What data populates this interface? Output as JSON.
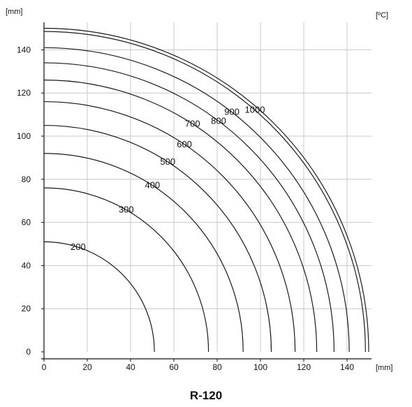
{
  "chart_data": {
    "type": "line",
    "title": "R-120",
    "xlabel": "[mm]",
    "ylabel": "[mm]",
    "unit_label": "[ºC]",
    "xlim": [
      0,
      150
    ],
    "ylim": [
      0,
      150
    ],
    "xticks": [
      0,
      20,
      40,
      60,
      80,
      100,
      120,
      140
    ],
    "yticks": [
      0,
      20,
      40,
      60,
      80,
      100,
      120,
      140
    ],
    "grid": true,
    "curve_shape": "quarter-circle isotherms centred at origin",
    "series": [
      {
        "name": "200",
        "radius": 51
      },
      {
        "name": "300",
        "radius": 76
      },
      {
        "name": "400",
        "radius": 92
      },
      {
        "name": "500",
        "radius": 105
      },
      {
        "name": "600",
        "radius": 116
      },
      {
        "name": "700",
        "radius": 126
      },
      {
        "name": "800",
        "radius": 134
      },
      {
        "name": "900",
        "radius": 141
      },
      {
        "name": "1000",
        "radius": 148.5
      },
      {
        "name": "",
        "radius": 150
      }
    ],
    "line_color": "#1a1a1a",
    "grid_color": "#c8c8c8"
  }
}
